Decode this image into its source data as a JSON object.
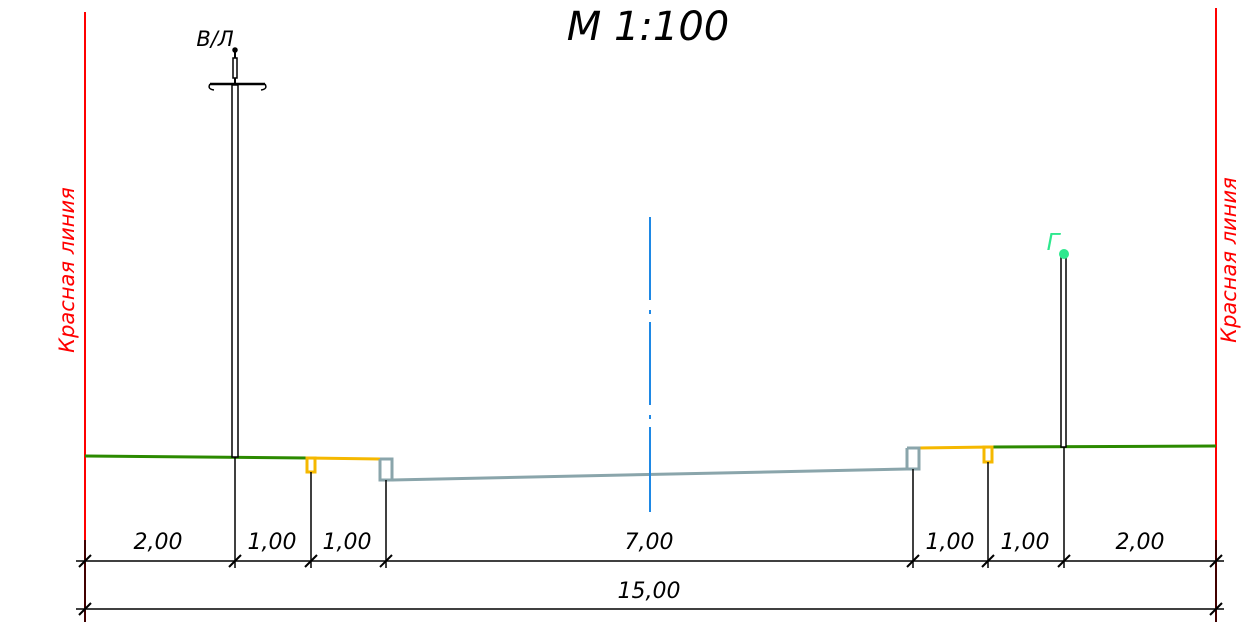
{
  "title": "М 1:100",
  "red_line_left": "Красная линия",
  "red_line_right": "Красная линия",
  "pole_label": "В/Л",
  "gas_label": "Г",
  "dimensions": [
    "2,00",
    "1,00",
    "1,00",
    "7,00",
    "1,00",
    "1,00",
    "2,00"
  ],
  "total_dimension": "15,00",
  "colors": {
    "red_line": "#ff0000",
    "ground": "#2b8a00",
    "sidewalk": "#f5b800",
    "roadway": "#8aa5ab",
    "axis": "#1e88e5",
    "gas": "#2ee88e",
    "ink": "#000000"
  }
}
